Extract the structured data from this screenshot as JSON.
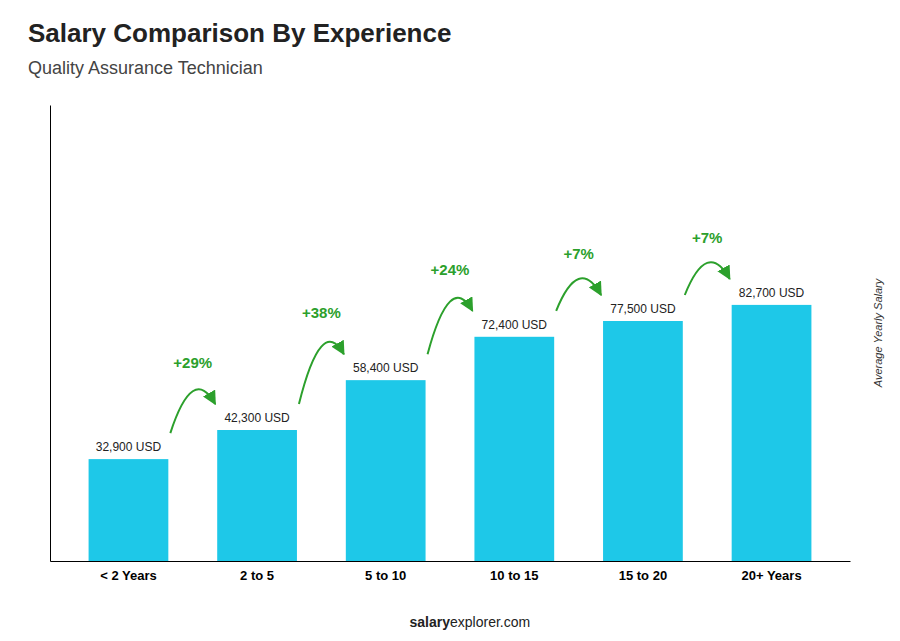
{
  "chart_data": {
    "type": "bar",
    "title": "Salary Comparison By Experience",
    "subtitle": "Quality Assurance Technician",
    "ylabel": "Average Yearly Salary",
    "categories": [
      "< 2 Years",
      "2 to 5",
      "5 to 10",
      "10 to 15",
      "15 to 20",
      "20+ Years"
    ],
    "values": [
      32900,
      42300,
      58400,
      72400,
      77500,
      82700
    ],
    "value_labels": [
      "32,900 USD",
      "42,300 USD",
      "58,400 USD",
      "72,400 USD",
      "77,500 USD",
      "82,700 USD"
    ],
    "data_labels": true,
    "annotations": [
      "+29%",
      "+38%",
      "+24%",
      "+7%",
      "+7%"
    ],
    "footer": [
      "salary",
      "explorer.com"
    ],
    "color": "#1EC8E8",
    "ylim": [
      0,
      147250
    ],
    "tick_labels": "x",
    "grid": false
  }
}
